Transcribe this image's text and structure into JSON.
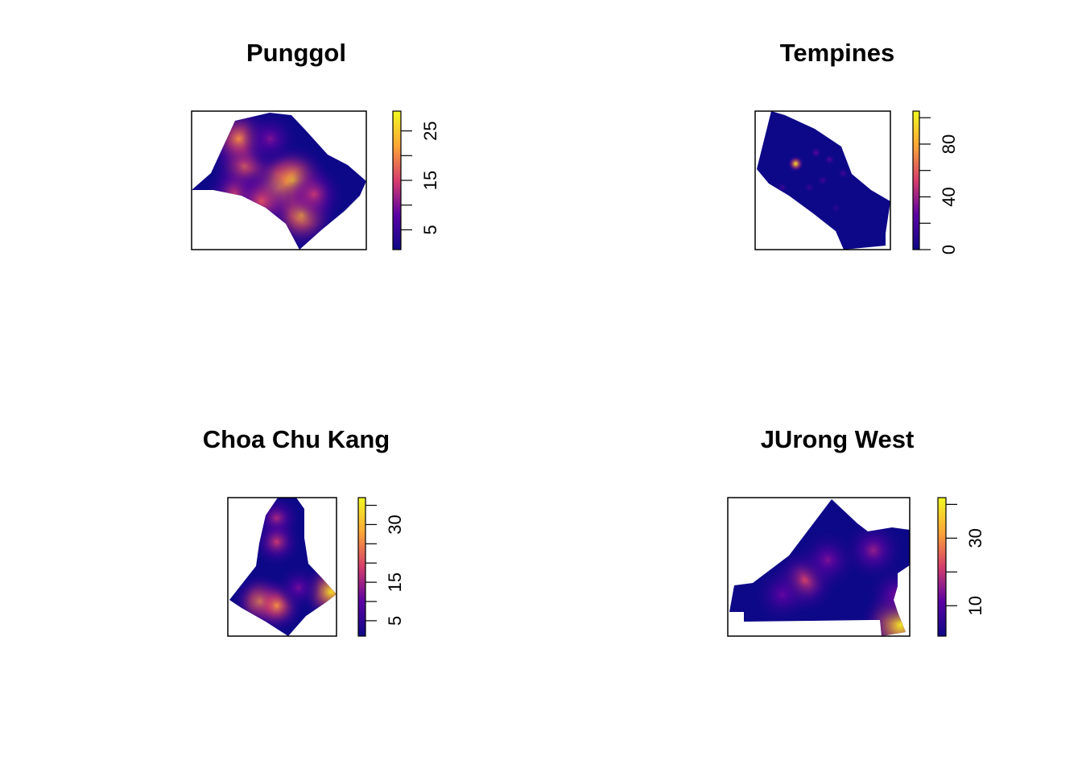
{
  "chart_data": [
    {
      "type": "heatmap",
      "title": "Punggol",
      "xlabel": "",
      "ylabel": "",
      "colorbar": {
        "range": [
          1,
          29
        ],
        "labeled_ticks": [
          5,
          15,
          25
        ],
        "ticks": [
          5,
          10,
          15,
          20,
          25
        ],
        "palette": [
          "#0d0887",
          "#5b02a3",
          "#d63d6b",
          "#fca636",
          "#f0f921"
        ]
      },
      "hotspots": [
        {
          "x": 0.5,
          "y": 0.55,
          "value": 27
        },
        {
          "x": 0.58,
          "y": 0.5,
          "value": 24
        },
        {
          "x": 0.63,
          "y": 0.75,
          "value": 22
        },
        {
          "x": 0.3,
          "y": 0.4,
          "value": 18
        },
        {
          "x": 0.25,
          "y": 0.6,
          "value": 15
        },
        {
          "x": 0.4,
          "y": 0.65,
          "value": 16
        },
        {
          "x": 0.7,
          "y": 0.6,
          "value": 14
        },
        {
          "x": 0.27,
          "y": 0.2,
          "value": 20
        },
        {
          "x": 0.45,
          "y": 0.2,
          "value": 10
        }
      ]
    },
    {
      "type": "heatmap",
      "title": "Tempines",
      "xlabel": "",
      "ylabel": "",
      "colorbar": {
        "range": [
          0,
          105
        ],
        "labeled_ticks": [
          0,
          40,
          80
        ],
        "ticks": [
          0,
          20,
          40,
          60,
          80,
          100
        ],
        "palette": [
          "#0d0887",
          "#5b02a3",
          "#d63d6b",
          "#fca636",
          "#f0f921"
        ]
      },
      "hotspots": [
        {
          "x": 0.3,
          "y": 0.38,
          "value": 100
        },
        {
          "x": 0.45,
          "y": 0.3,
          "value": 30
        },
        {
          "x": 0.55,
          "y": 0.35,
          "value": 25
        },
        {
          "x": 0.65,
          "y": 0.45,
          "value": 20
        },
        {
          "x": 0.2,
          "y": 0.55,
          "value": 18
        },
        {
          "x": 0.4,
          "y": 0.55,
          "value": 15
        },
        {
          "x": 0.6,
          "y": 0.7,
          "value": 12
        },
        {
          "x": 0.5,
          "y": 0.5,
          "value": 20
        }
      ]
    },
    {
      "type": "heatmap",
      "title": "Choa Chu Kang",
      "xlabel": "",
      "ylabel": "",
      "colorbar": {
        "range": [
          1,
          37
        ],
        "labeled_ticks": [
          5,
          15,
          30
        ],
        "ticks": [
          5,
          10,
          15,
          20,
          25,
          30,
          35
        ],
        "palette": [
          "#0d0887",
          "#5b02a3",
          "#d63d6b",
          "#fca636",
          "#f0f921"
        ]
      },
      "hotspots": [
        {
          "x": 0.3,
          "y": 0.75,
          "value": 28
        },
        {
          "x": 0.45,
          "y": 0.78,
          "value": 26
        },
        {
          "x": 0.95,
          "y": 0.68,
          "value": 34
        },
        {
          "x": 0.45,
          "y": 0.15,
          "value": 16
        },
        {
          "x": 0.45,
          "y": 0.32,
          "value": 18
        },
        {
          "x": 0.65,
          "y": 0.65,
          "value": 12
        }
      ]
    },
    {
      "type": "heatmap",
      "title": "JUrong West",
      "xlabel": "",
      "ylabel": "",
      "colorbar": {
        "range": [
          1,
          42
        ],
        "labeled_ticks": [
          10,
          30
        ],
        "ticks": [
          10,
          20,
          30,
          40
        ],
        "palette": [
          "#0d0887",
          "#5b02a3",
          "#d63d6b",
          "#fca636",
          "#f0f921"
        ]
      },
      "hotspots": [
        {
          "x": 0.95,
          "y": 0.92,
          "value": 40
        },
        {
          "x": 0.42,
          "y": 0.6,
          "value": 22
        },
        {
          "x": 0.55,
          "y": 0.45,
          "value": 14
        },
        {
          "x": 0.8,
          "y": 0.38,
          "value": 16
        },
        {
          "x": 0.3,
          "y": 0.7,
          "value": 12
        },
        {
          "x": 0.93,
          "y": 0.7,
          "value": 14
        }
      ]
    }
  ]
}
